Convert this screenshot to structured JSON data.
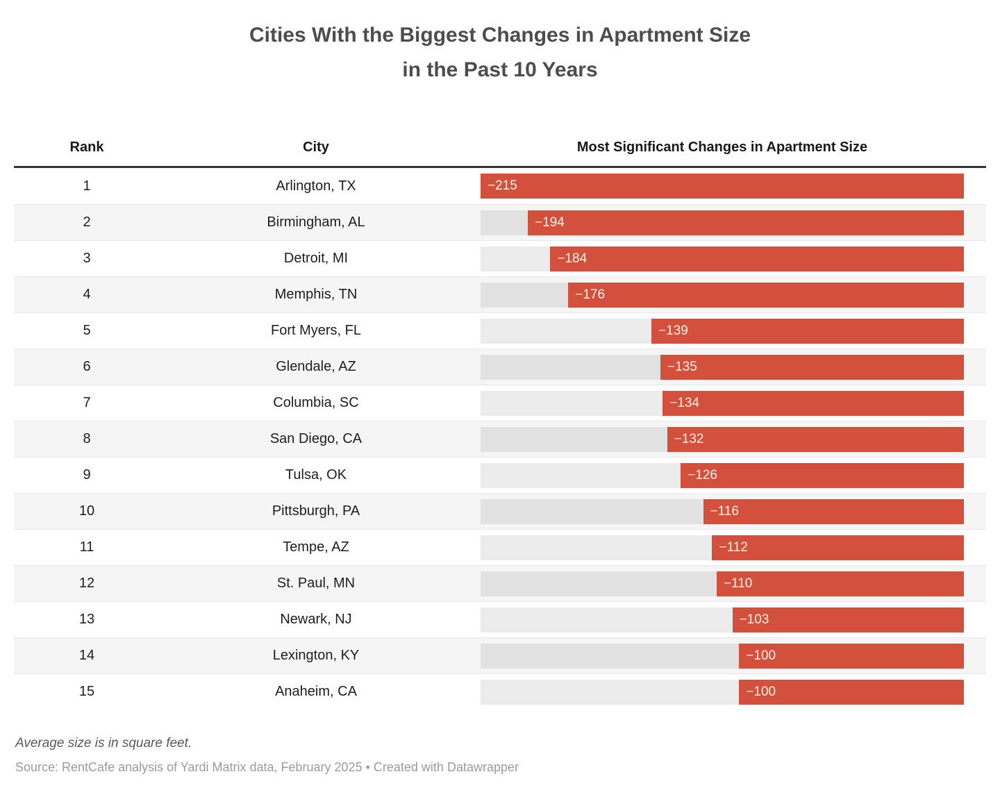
{
  "title": {
    "line1": "Cities With the Biggest Changes in Apartment Size",
    "line2": "in the Past 10 Years"
  },
  "table": {
    "headers": {
      "rank": "Rank",
      "city": "City",
      "bar": "Most Significant Changes in Apartment Size"
    }
  },
  "chart_data": {
    "type": "bar",
    "orientation": "horizontal",
    "bar_anchor": "right",
    "title": "Cities With the Biggest Changes in Apartment Size in the Past 10 Years",
    "value_column_label": "Most Significant Changes in Apartment Size",
    "unit": "square feet",
    "xlim": [
      -215,
      0
    ],
    "max_abs_value": 215,
    "categories": [
      "Arlington, TX",
      "Birmingham, AL",
      "Detroit, MI",
      "Memphis, TN",
      "Fort Myers, FL",
      "Glendale, AZ",
      "Columbia, SC",
      "San Diego, CA",
      "Tulsa, OK",
      "Pittsburgh, PA",
      "Tempe, AZ",
      "St. Paul, MN",
      "Newark, NJ",
      "Lexington, KY",
      "Anaheim, CA"
    ],
    "values": [
      -215,
      -194,
      -184,
      -176,
      -139,
      -135,
      -134,
      -132,
      -126,
      -116,
      -112,
      -110,
      -103,
      -100,
      -100
    ],
    "rows": [
      {
        "rank": "1",
        "city": "Arlington, TX",
        "value": -215,
        "label": "−215"
      },
      {
        "rank": "2",
        "city": "Birmingham, AL",
        "value": -194,
        "label": "−194"
      },
      {
        "rank": "3",
        "city": "Detroit, MI",
        "value": -184,
        "label": "−184"
      },
      {
        "rank": "4",
        "city": "Memphis, TN",
        "value": -176,
        "label": "−176"
      },
      {
        "rank": "5",
        "city": "Fort Myers, FL",
        "value": -139,
        "label": "−139"
      },
      {
        "rank": "6",
        "city": "Glendale, AZ",
        "value": -135,
        "label": "−135"
      },
      {
        "rank": "7",
        "city": "Columbia, SC",
        "value": -134,
        "label": "−134"
      },
      {
        "rank": "8",
        "city": "San Diego, CA",
        "value": -132,
        "label": "−132"
      },
      {
        "rank": "9",
        "city": "Tulsa, OK",
        "value": -126,
        "label": "−126"
      },
      {
        "rank": "10",
        "city": "Pittsburgh, PA",
        "value": -116,
        "label": "−116"
      },
      {
        "rank": "11",
        "city": "Tempe, AZ",
        "value": -112,
        "label": "−112"
      },
      {
        "rank": "12",
        "city": "St. Paul, MN",
        "value": -110,
        "label": "−110"
      },
      {
        "rank": "13",
        "city": "Newark, NJ",
        "value": -103,
        "label": "−103"
      },
      {
        "rank": "14",
        "city": "Lexington, KY",
        "value": -100,
        "label": "−100"
      },
      {
        "rank": "15",
        "city": "Anaheim, CA",
        "value": -100,
        "label": "−100"
      }
    ],
    "colors": {
      "bar": "#d2503c",
      "bar_label": "#fdf3ea",
      "track": "#e9e9e9",
      "row_stripe": "#f5f5f5",
      "header_rule": "#333333"
    },
    "grid": false,
    "legend": false
  },
  "footer": {
    "note": "Average size is in square feet.",
    "source": "Source: RentCafe analysis of Yardi Matrix data, February 2025 • Created with Datawrapper"
  }
}
